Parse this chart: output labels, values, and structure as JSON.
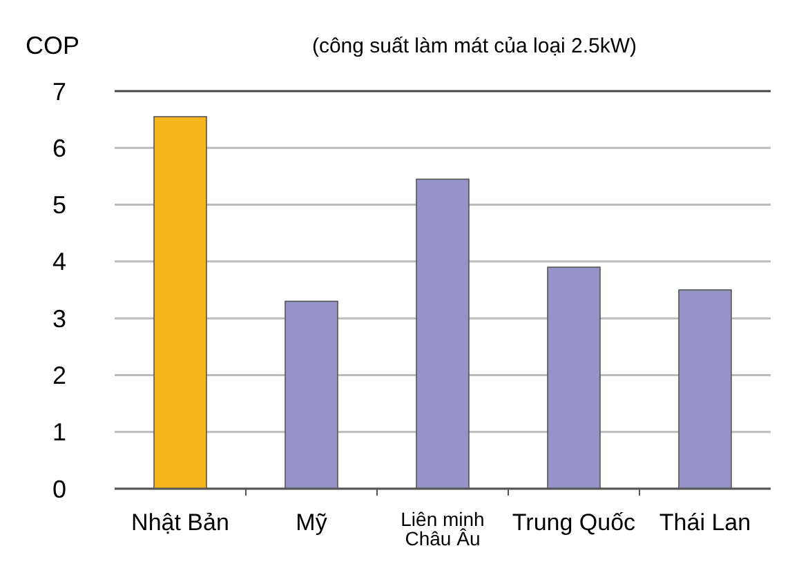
{
  "chart_data": {
    "type": "bar",
    "title": "(công suất làm mát của loại 2.5kW)",
    "ylabel": "COP",
    "categories": [
      "Nhật Bản",
      "Mỹ",
      "Liên minh Châu Âu",
      "Trung Quốc",
      "Thái Lan"
    ],
    "values": [
      6.55,
      3.3,
      5.45,
      3.9,
      3.5
    ],
    "colors": [
      "#f5b61b",
      "#9494c8",
      "#9494c8",
      "#9494c8",
      "#9494c8"
    ],
    "ylim": [
      0,
      7
    ],
    "yticks": [
      0,
      1,
      2,
      3,
      4,
      5,
      6,
      7
    ],
    "grid": "y"
  }
}
